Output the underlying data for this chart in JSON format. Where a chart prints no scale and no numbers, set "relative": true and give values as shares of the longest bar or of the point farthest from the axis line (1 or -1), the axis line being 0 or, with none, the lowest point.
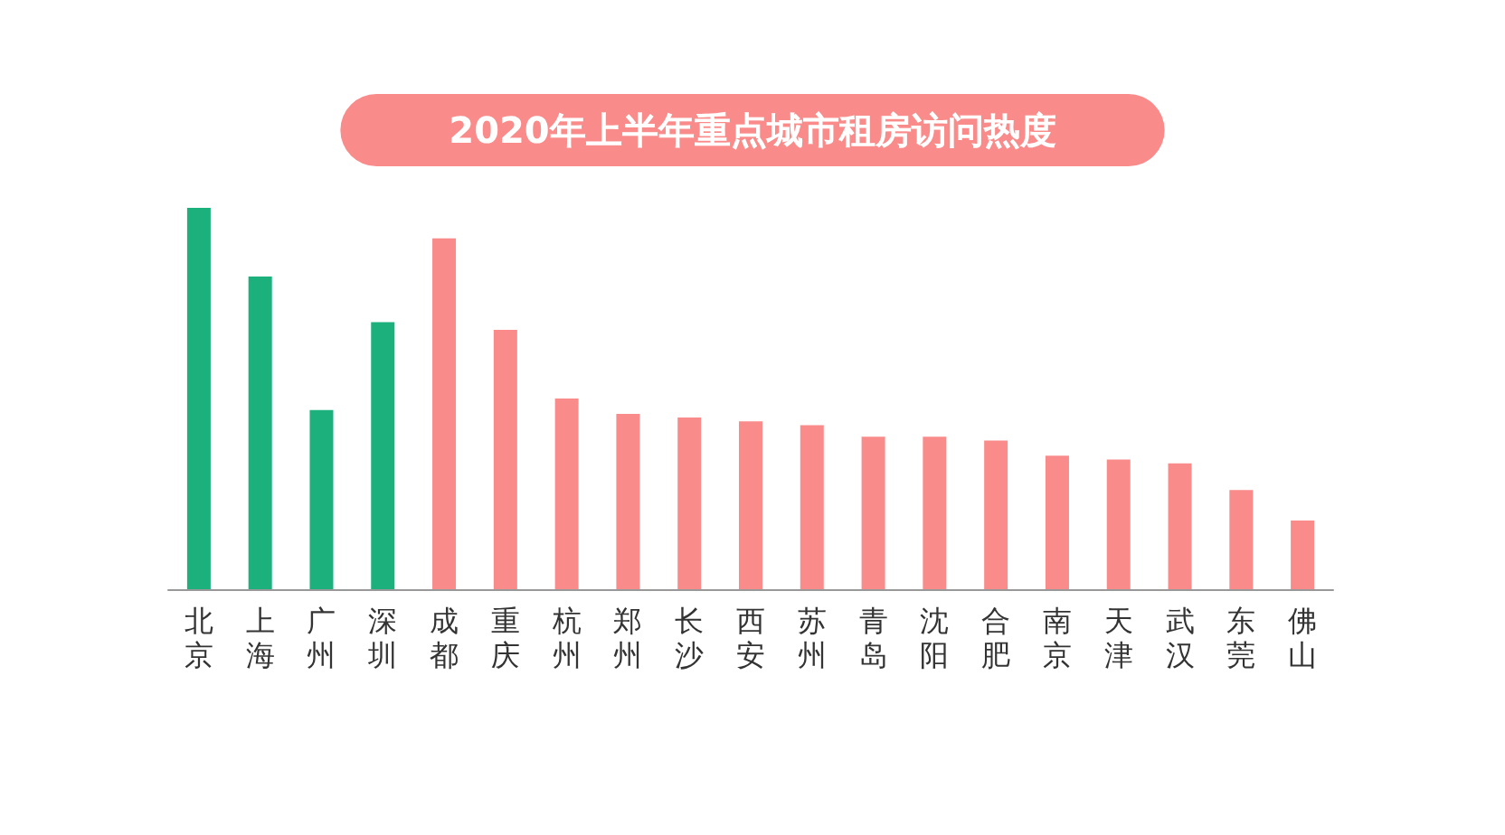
{
  "chart_data": {
    "type": "bar",
    "title": "2020年上半年重点城市租房访问热度",
    "relative": true,
    "categories": [
      "北京",
      "上海",
      "广州",
      "深圳",
      "成都",
      "重庆",
      "杭州",
      "郑州",
      "长沙",
      "西安",
      "苏州",
      "青岛",
      "沈阳",
      "合肥",
      "南京",
      "天津",
      "武汉",
      "东莞",
      "佛山"
    ],
    "values": [
      1,
      0.82,
      0.47,
      0.7,
      0.92,
      0.68,
      0.5,
      0.46,
      0.45,
      0.44,
      0.43,
      0.4,
      0.4,
      0.39,
      0.35,
      0.34,
      0.33,
      0.26,
      0.18
    ],
    "colors": [
      "#1bb07c",
      "#1bb07c",
      "#1bb07c",
      "#1bb07c",
      "#f98b8b",
      "#f98b8b",
      "#f98b8b",
      "#f98b8b",
      "#f98b8b",
      "#f98b8b",
      "#f98b8b",
      "#f98b8b",
      "#f98b8b",
      "#f98b8b",
      "#f98b8b",
      "#f98b8b",
      "#f98b8b",
      "#f98b8b",
      "#f98b8b"
    ],
    "grid": false
  }
}
